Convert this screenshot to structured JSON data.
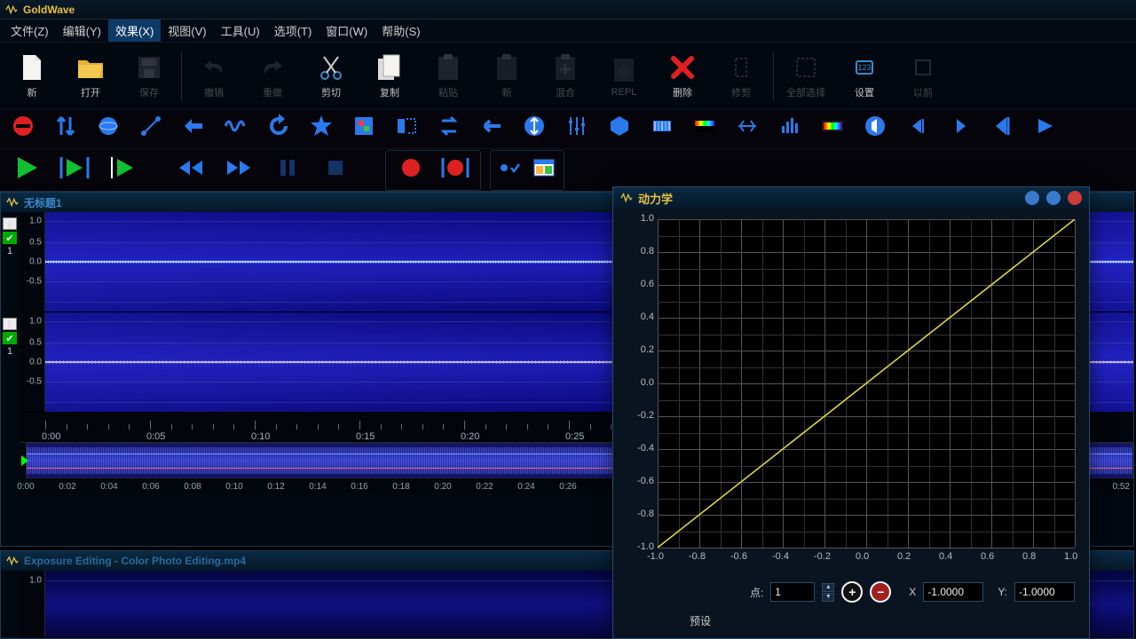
{
  "app": {
    "title": "GoldWave"
  },
  "menu": {
    "items": [
      {
        "label": "文件(Z)",
        "active": false
      },
      {
        "label": "编辑(Y)",
        "active": false
      },
      {
        "label": "效果(X)",
        "active": true
      },
      {
        "label": "视图(V)",
        "active": false
      },
      {
        "label": "工具(U)",
        "active": false
      },
      {
        "label": "选项(T)",
        "active": false
      },
      {
        "label": "窗口(W)",
        "active": false
      },
      {
        "label": "帮助(S)",
        "active": false
      }
    ]
  },
  "toolbar": {
    "new": "新",
    "open": "打开",
    "save": "保存",
    "undo": "撤销",
    "redo": "重做",
    "cut": "剪切",
    "copy": "复制",
    "paste": "粘贴",
    "newblank": "新",
    "mix": "混合",
    "repl": "REPL",
    "delete": "删除",
    "trim": "修剪",
    "selectall": "全部选择",
    "settings": "设置",
    "cropprev": "以前"
  },
  "doc1": {
    "title": "无标题1",
    "yticks": [
      "1.0",
      "0.5",
      "0.0",
      "-0.5"
    ],
    "timeticks": [
      "0:00",
      "0:05",
      "0:10",
      "0:15",
      "0:20",
      "0:25"
    ],
    "overview_ticks": [
      "0:00",
      "0:02",
      "0:04",
      "0:06",
      "0:08",
      "0:10",
      "0:12",
      "0:14",
      "0:16",
      "0:18",
      "0:20",
      "0:22",
      "0:24",
      "0:26"
    ],
    "overview_tail": "0:52",
    "channel_num": "1"
  },
  "doc2": {
    "title": "Exposure Editing - Color Photo Editing.mp4",
    "ytick": "1.0"
  },
  "dialog": {
    "title": "动力学",
    "axis_ticks": [
      "-1.0",
      "-0.8",
      "-0.6",
      "-0.4",
      "-0.2",
      "0.0",
      "0.2",
      "0.4",
      "0.6",
      "0.8",
      "1.0"
    ],
    "point_label": "点:",
    "point_value": "1",
    "x_label": "X",
    "x_value": "-1.0000",
    "y_label": "Y:",
    "y_value": "-1.0000",
    "preset_label": "预设",
    "graph": {
      "xlim": [
        -1,
        1
      ],
      "ylim": [
        -1,
        1
      ],
      "major_step": 0.2,
      "minor_step": 0.1,
      "line_color": "#e8e040",
      "points": [
        [
          -1,
          -1
        ],
        [
          1,
          1
        ]
      ]
    }
  },
  "colors": {
    "accent_yellow": "#e8c040",
    "wave_bg": "#1a1aa0",
    "grid": "#333333",
    "play_green": "#10c030",
    "rec_red": "#e02020",
    "icon_blue": "#2a7aee"
  }
}
